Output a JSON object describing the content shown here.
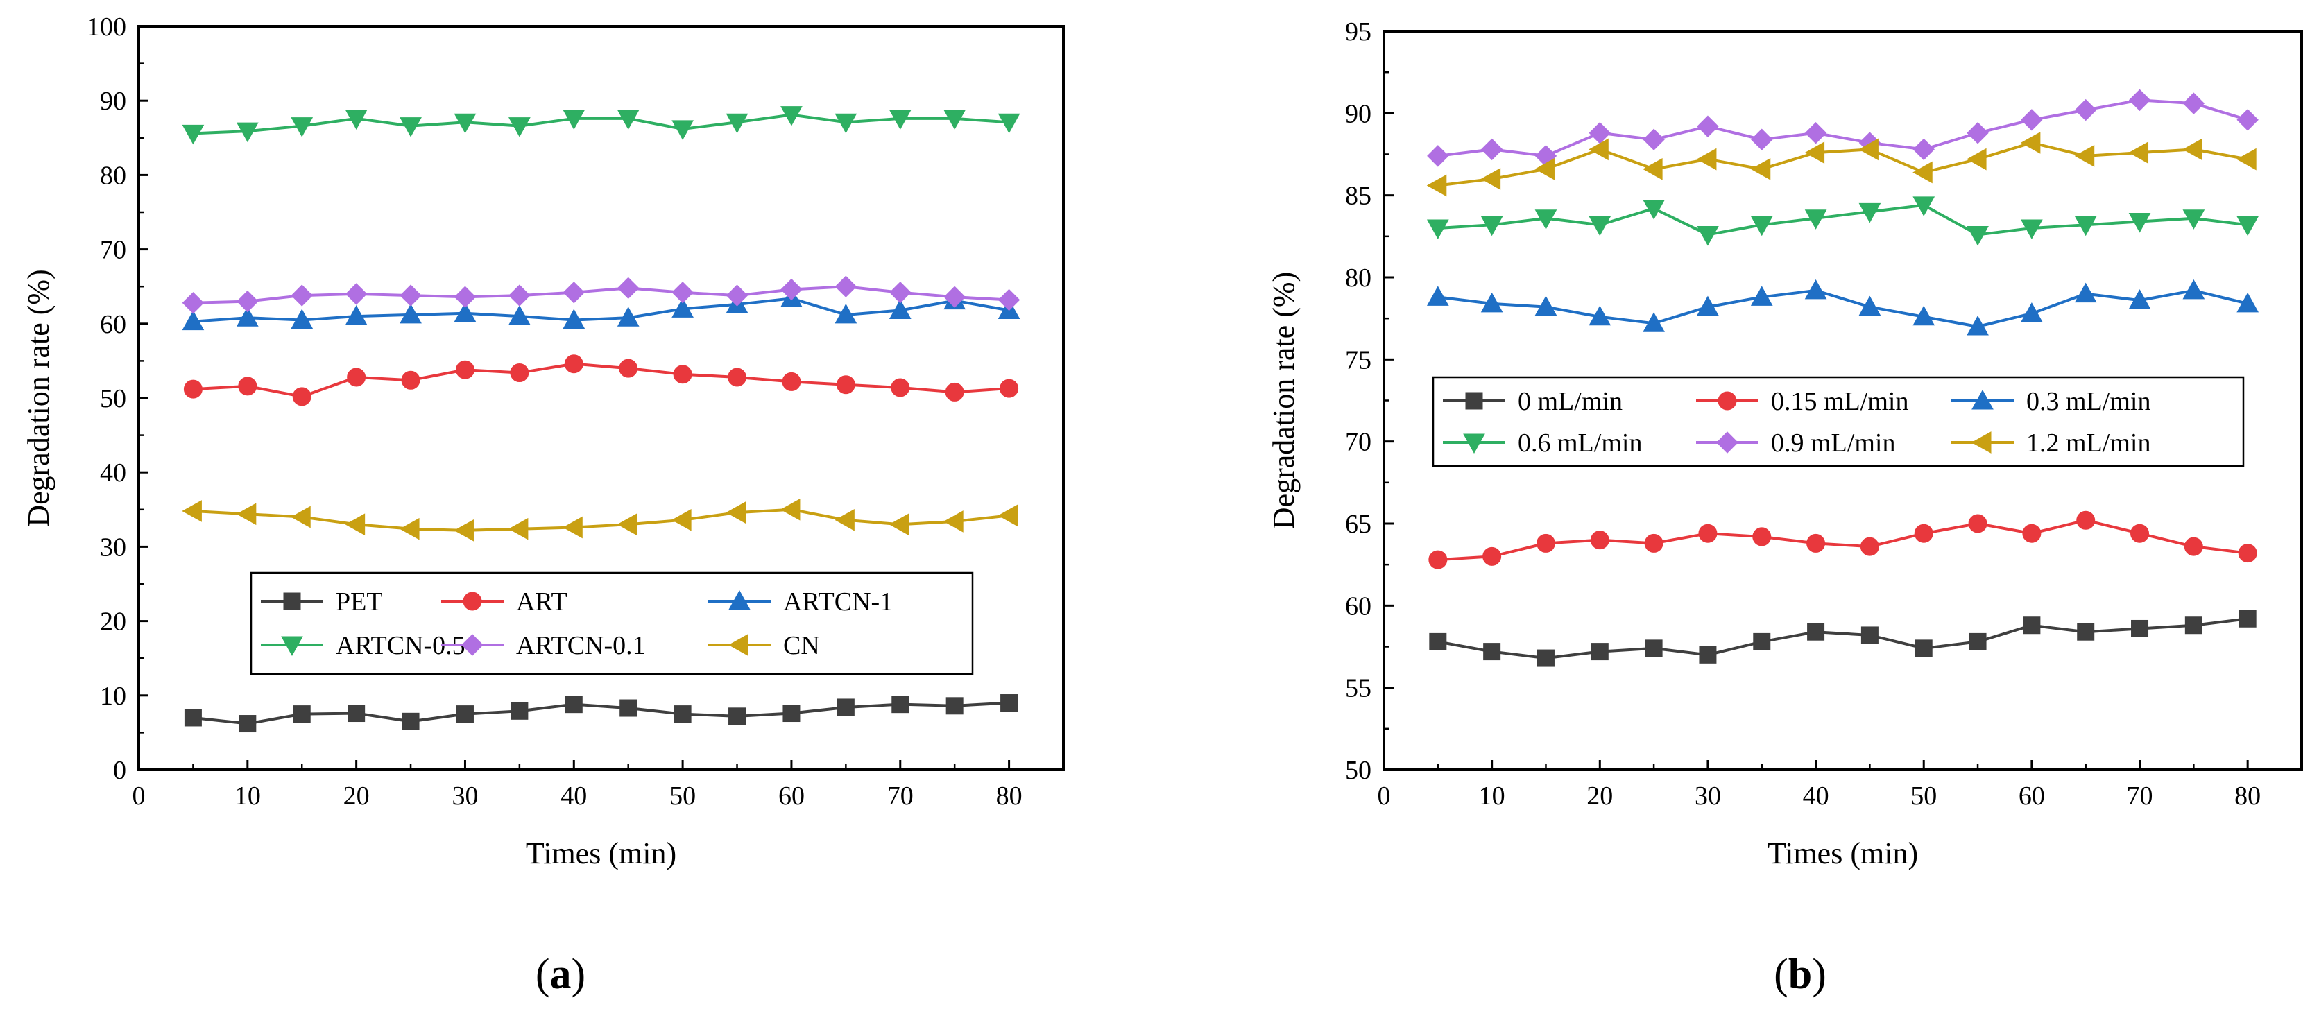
{
  "chart_data": [
    {
      "type": "line",
      "panel_label": "a",
      "xlabel": "Times (min)",
      "ylabel": "Degradation rate (%)",
      "xlim": [
        0,
        85
      ],
      "ylim": [
        0,
        100
      ],
      "xticks": [
        0,
        10,
        20,
        30,
        40,
        50,
        60,
        70,
        80
      ],
      "yticks": [
        0,
        10,
        20,
        30,
        40,
        50,
        60,
        70,
        80,
        90,
        100
      ],
      "legend_position": "lower-center",
      "legend_columns": 3,
      "x": [
        5,
        10,
        15,
        20,
        25,
        30,
        35,
        40,
        45,
        50,
        55,
        60,
        65,
        70,
        75,
        80
      ],
      "series": [
        {
          "name": "PET",
          "color": "#3f3f3f",
          "marker": "square",
          "values": [
            7.0,
            6.2,
            7.5,
            7.6,
            6.5,
            7.5,
            7.9,
            8.8,
            8.3,
            7.5,
            7.2,
            7.6,
            8.4,
            8.8,
            8.6,
            9.0
          ]
        },
        {
          "name": "ART",
          "color": "#e8383d",
          "marker": "circle",
          "values": [
            51.2,
            51.6,
            50.2,
            52.8,
            52.4,
            53.8,
            53.4,
            54.6,
            54.0,
            53.2,
            52.8,
            52.2,
            51.8,
            51.4,
            50.8,
            51.3
          ]
        },
        {
          "name": "ARTCN-1",
          "color": "#1f6fc5",
          "marker": "triangle-up",
          "values": [
            60.3,
            60.8,
            60.5,
            61.0,
            61.2,
            61.4,
            61.0,
            60.5,
            60.8,
            62.0,
            62.6,
            63.4,
            61.2,
            61.8,
            63.1,
            61.8
          ]
        },
        {
          "name": "ARTCN-0.5",
          "color": "#2eaf62",
          "marker": "triangle-down",
          "values": [
            85.6,
            85.9,
            86.6,
            87.6,
            86.6,
            87.1,
            86.6,
            87.6,
            87.6,
            86.2,
            87.1,
            88.1,
            87.1,
            87.6,
            87.6,
            87.1
          ]
        },
        {
          "name": "ARTCN-0.1",
          "color": "#b06fe2",
          "marker": "diamond",
          "values": [
            62.8,
            63.0,
            63.8,
            64.0,
            63.8,
            63.6,
            63.8,
            64.2,
            64.8,
            64.2,
            63.8,
            64.6,
            65.0,
            64.2,
            63.6,
            63.2
          ]
        },
        {
          "name": "CN",
          "color": "#c9a012",
          "marker": "triangle-left",
          "values": [
            34.8,
            34.4,
            34.0,
            33.0,
            32.4,
            32.2,
            32.4,
            32.6,
            33.0,
            33.6,
            34.6,
            35.0,
            33.6,
            33.0,
            33.4,
            34.2
          ]
        }
      ]
    },
    {
      "type": "line",
      "panel_label": "b",
      "xlabel": "Times (min)",
      "ylabel": "Degradation rate (%)",
      "xlim": [
        0,
        85
      ],
      "ylim": [
        50,
        95
      ],
      "xticks": [
        0,
        10,
        20,
        30,
        40,
        50,
        60,
        70,
        80
      ],
      "yticks": [
        50,
        55,
        60,
        65,
        70,
        75,
        80,
        85,
        90,
        95
      ],
      "legend_position": "center-left",
      "legend_columns": 3,
      "x": [
        5,
        10,
        15,
        20,
        25,
        30,
        35,
        40,
        45,
        50,
        55,
        60,
        65,
        70,
        75,
        80
      ],
      "series": [
        {
          "name": "0 mL/min",
          "color": "#3f3f3f",
          "marker": "square",
          "values": [
            57.8,
            57.2,
            56.8,
            57.2,
            57.4,
            57.0,
            57.8,
            58.4,
            58.2,
            57.4,
            57.8,
            58.8,
            58.4,
            58.6,
            58.8,
            59.2
          ]
        },
        {
          "name": "0.15 mL/min",
          "color": "#e8383d",
          "marker": "circle",
          "values": [
            62.8,
            63.0,
            63.8,
            64.0,
            63.8,
            64.4,
            64.2,
            63.8,
            63.6,
            64.4,
            65.0,
            64.4,
            65.2,
            64.4,
            63.6,
            63.2
          ]
        },
        {
          "name": "0.3 mL/min",
          "color": "#1f6fc5",
          "marker": "triangle-up",
          "values": [
            78.8,
            78.4,
            78.2,
            77.6,
            77.2,
            78.2,
            78.8,
            79.2,
            78.2,
            77.6,
            77.0,
            77.8,
            79.0,
            78.6,
            79.2,
            78.4
          ]
        },
        {
          "name": "0.6 mL/min",
          "color": "#2eaf62",
          "marker": "triangle-down",
          "values": [
            83.0,
            83.2,
            83.6,
            83.2,
            84.2,
            82.6,
            83.2,
            83.6,
            84.0,
            84.4,
            82.6,
            83.0,
            83.2,
            83.4,
            83.6,
            83.2
          ]
        },
        {
          "name": "0.9 mL/min",
          "color": "#b06fe2",
          "marker": "diamond",
          "values": [
            87.4,
            87.8,
            87.4,
            88.8,
            88.4,
            89.2,
            88.4,
            88.8,
            88.2,
            87.8,
            88.8,
            89.6,
            90.2,
            90.8,
            90.6,
            89.6
          ]
        },
        {
          "name": "1.2 mL/min",
          "color": "#c9a012",
          "marker": "triangle-left",
          "values": [
            85.6,
            86.0,
            86.6,
            87.8,
            86.6,
            87.2,
            86.6,
            87.6,
            87.8,
            86.4,
            87.2,
            88.2,
            87.4,
            87.6,
            87.8,
            87.2
          ]
        }
      ]
    }
  ]
}
